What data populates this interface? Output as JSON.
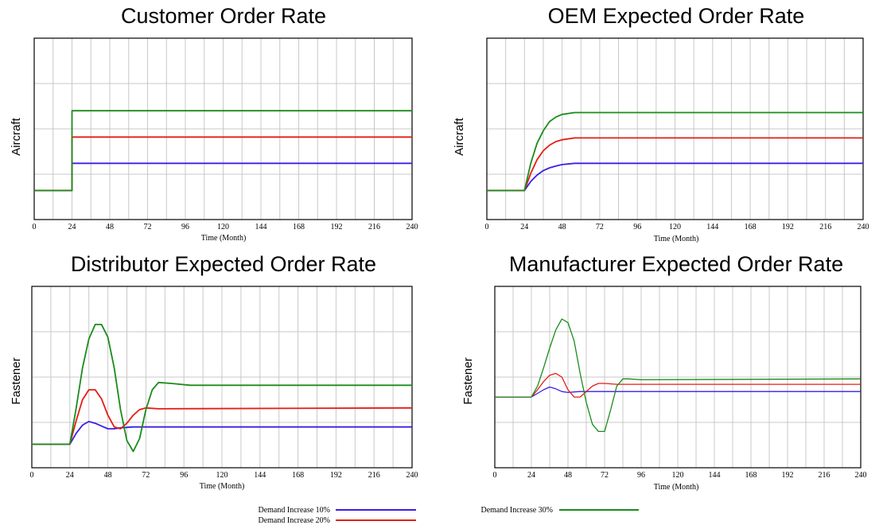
{
  "colors": {
    "s10": "#3a1fe6",
    "s20": "#e51c14",
    "s30": "#1a8c1a",
    "grid": "#c8c8c8",
    "frame": "#000000"
  },
  "legend": [
    {
      "label": "Demand Increase 10%",
      "color": "#3a1fe6"
    },
    {
      "label": "Demand Increase 20%",
      "color": "#e51c14"
    },
    {
      "label": "Demand Increase 30%",
      "color": "#1a8c1a"
    }
  ],
  "chart_data": [
    {
      "type": "line",
      "title": "Customer Order Rate",
      "ylabel": "Aircraft",
      "xlabel": "Time (Month)",
      "xlim": [
        0,
        240
      ],
      "ylim": [
        0,
        1
      ],
      "xticks": [
        0,
        24,
        48,
        72,
        96,
        120,
        144,
        168,
        192,
        216,
        240
      ],
      "grid": true,
      "series": [
        {
          "name": "Demand Increase 10%",
          "points": [
            [
              0,
              0.16
            ],
            [
              24,
              0.16
            ],
            [
              24,
              0.31
            ],
            [
              240,
              0.31
            ]
          ]
        },
        {
          "name": "Demand Increase 20%",
          "points": [
            [
              0,
              0.16
            ],
            [
              24,
              0.16
            ],
            [
              24,
              0.455
            ],
            [
              240,
              0.455
            ]
          ]
        },
        {
          "name": "Demand Increase 30%",
          "points": [
            [
              0,
              0.16
            ],
            [
              24,
              0.16
            ],
            [
              24,
              0.6
            ],
            [
              240,
              0.6
            ]
          ]
        }
      ]
    },
    {
      "type": "line",
      "title": "OEM Expected Order Rate",
      "ylabel": "Aircraft",
      "xlabel": "Time (Month)",
      "xlim": [
        0,
        240
      ],
      "ylim": [
        0,
        1
      ],
      "xticks": [
        0,
        24,
        48,
        72,
        96,
        120,
        144,
        168,
        192,
        216,
        240
      ],
      "grid": true,
      "series": [
        {
          "name": "Demand Increase 10%",
          "points": [
            [
              0,
              0.16
            ],
            [
              24,
              0.16
            ],
            [
              28,
              0.21
            ],
            [
              32,
              0.245
            ],
            [
              36,
              0.27
            ],
            [
              40,
              0.285
            ],
            [
              44,
              0.295
            ],
            [
              48,
              0.303
            ],
            [
              56,
              0.31
            ],
            [
              240,
              0.31
            ]
          ]
        },
        {
          "name": "Demand Increase 20%",
          "points": [
            [
              0,
              0.16
            ],
            [
              24,
              0.16
            ],
            [
              28,
              0.255
            ],
            [
              32,
              0.33
            ],
            [
              36,
              0.38
            ],
            [
              40,
              0.41
            ],
            [
              44,
              0.43
            ],
            [
              48,
              0.44
            ],
            [
              56,
              0.45
            ],
            [
              240,
              0.45
            ]
          ]
        },
        {
          "name": "Demand Increase 30%",
          "points": [
            [
              0,
              0.16
            ],
            [
              24,
              0.16
            ],
            [
              28,
              0.31
            ],
            [
              32,
              0.42
            ],
            [
              36,
              0.49
            ],
            [
              40,
              0.54
            ],
            [
              44,
              0.565
            ],
            [
              48,
              0.58
            ],
            [
              56,
              0.59
            ],
            [
              240,
              0.59
            ]
          ]
        }
      ]
    },
    {
      "type": "line",
      "title": "Distributor Expected Order Rate",
      "ylabel": "Fastener",
      "xlabel": "Time (Month)",
      "xlim": [
        0,
        240
      ],
      "ylim": [
        0,
        1
      ],
      "xticks": [
        0,
        24,
        48,
        72,
        96,
        120,
        144,
        168,
        192,
        216,
        240
      ],
      "grid": true,
      "series": [
        {
          "name": "Demand Increase 10%",
          "points": [
            [
              0,
              0.13
            ],
            [
              24,
              0.13
            ],
            [
              28,
              0.19
            ],
            [
              32,
              0.235
            ],
            [
              36,
              0.255
            ],
            [
              40,
              0.245
            ],
            [
              44,
              0.23
            ],
            [
              48,
              0.215
            ],
            [
              52,
              0.215
            ],
            [
              56,
              0.22
            ],
            [
              64,
              0.225
            ],
            [
              240,
              0.225
            ]
          ]
        },
        {
          "name": "Demand Increase 20%",
          "points": [
            [
              0,
              0.13
            ],
            [
              24,
              0.13
            ],
            [
              28,
              0.26
            ],
            [
              32,
              0.375
            ],
            [
              36,
              0.43
            ],
            [
              40,
              0.43
            ],
            [
              44,
              0.38
            ],
            [
              48,
              0.29
            ],
            [
              52,
              0.225
            ],
            [
              56,
              0.215
            ],
            [
              60,
              0.245
            ],
            [
              64,
              0.29
            ],
            [
              68,
              0.32
            ],
            [
              72,
              0.33
            ],
            [
              80,
              0.325
            ],
            [
              240,
              0.33
            ]
          ]
        },
        {
          "name": "Demand Increase 30%",
          "points": [
            [
              0,
              0.13
            ],
            [
              24,
              0.13
            ],
            [
              28,
              0.33
            ],
            [
              32,
              0.55
            ],
            [
              36,
              0.71
            ],
            [
              40,
              0.79
            ],
            [
              44,
              0.79
            ],
            [
              48,
              0.72
            ],
            [
              52,
              0.55
            ],
            [
              56,
              0.32
            ],
            [
              60,
              0.15
            ],
            [
              64,
              0.09
            ],
            [
              68,
              0.16
            ],
            [
              72,
              0.32
            ],
            [
              76,
              0.43
            ],
            [
              80,
              0.47
            ],
            [
              88,
              0.465
            ],
            [
              100,
              0.455
            ],
            [
              240,
              0.455
            ]
          ]
        }
      ]
    },
    {
      "type": "line",
      "title": "Manufacturer Expected Order Rate",
      "ylabel": "Fastener",
      "xlabel": "Time (Month)",
      "xlim": [
        0,
        240
      ],
      "ylim": [
        0,
        1
      ],
      "xticks": [
        0,
        24,
        48,
        72,
        96,
        120,
        144,
        168,
        192,
        216,
        240
      ],
      "grid": true,
      "series": [
        {
          "name": "Demand Increase 10%",
          "points": [
            [
              0,
              0.39
            ],
            [
              24,
              0.39
            ],
            [
              28,
              0.41
            ],
            [
              32,
              0.43
            ],
            [
              36,
              0.445
            ],
            [
              40,
              0.435
            ],
            [
              44,
              0.42
            ],
            [
              48,
              0.415
            ],
            [
              52,
              0.418
            ],
            [
              56,
              0.42
            ],
            [
              240,
              0.42
            ]
          ]
        },
        {
          "name": "Demand Increase 20%",
          "points": [
            [
              0,
              0.39
            ],
            [
              24,
              0.39
            ],
            [
              28,
              0.43
            ],
            [
              32,
              0.475
            ],
            [
              36,
              0.51
            ],
            [
              40,
              0.52
            ],
            [
              44,
              0.5
            ],
            [
              48,
              0.43
            ],
            [
              52,
              0.39
            ],
            [
              56,
              0.39
            ],
            [
              60,
              0.42
            ],
            [
              64,
              0.45
            ],
            [
              68,
              0.465
            ],
            [
              72,
              0.465
            ],
            [
              80,
              0.46
            ],
            [
              240,
              0.46
            ]
          ]
        },
        {
          "name": "Demand Increase 30%",
          "points": [
            [
              0,
              0.39
            ],
            [
              24,
              0.39
            ],
            [
              28,
              0.45
            ],
            [
              32,
              0.55
            ],
            [
              36,
              0.66
            ],
            [
              40,
              0.76
            ],
            [
              44,
              0.82
            ],
            [
              48,
              0.8
            ],
            [
              52,
              0.7
            ],
            [
              56,
              0.52
            ],
            [
              60,
              0.36
            ],
            [
              64,
              0.24
            ],
            [
              68,
              0.2
            ],
            [
              72,
              0.2
            ],
            [
              76,
              0.32
            ],
            [
              80,
              0.45
            ],
            [
              84,
              0.49
            ],
            [
              88,
              0.49
            ],
            [
              96,
              0.485
            ],
            [
              240,
              0.49
            ]
          ]
        }
      ]
    }
  ]
}
